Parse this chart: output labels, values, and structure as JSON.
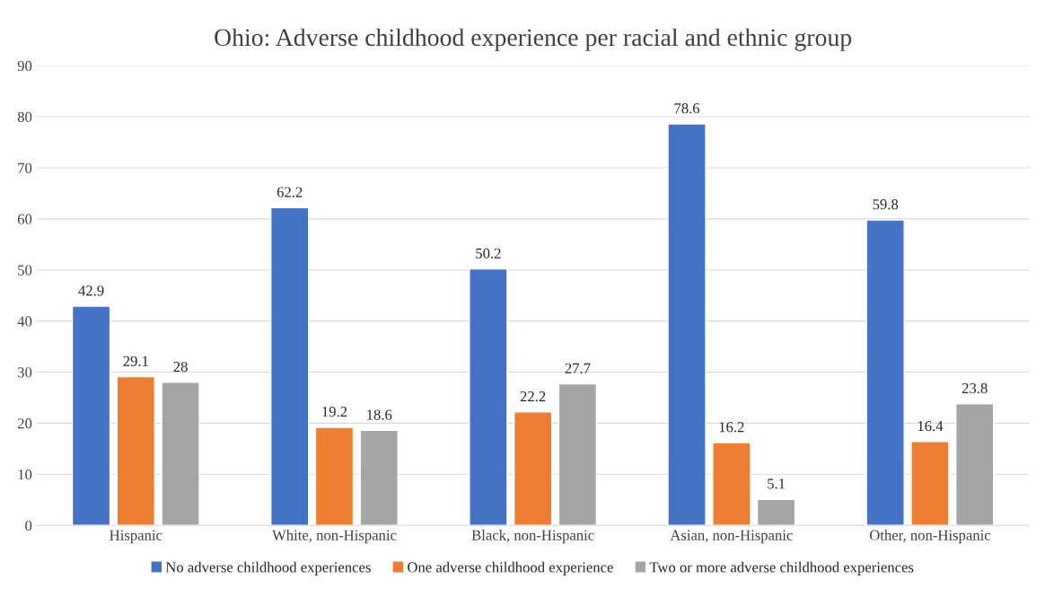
{
  "chart_data": {
    "type": "bar",
    "title": "Ohio: Adverse childhood experience per racial and ethnic group",
    "categories": [
      "Hispanic",
      "White, non-Hispanic",
      "Black, non-Hispanic",
      "Asian, non-Hispanic",
      "Other, non-Hispanic"
    ],
    "series": [
      {
        "name": "No adverse childhood experiences",
        "color": "#4472c4",
        "values": [
          42.9,
          62.2,
          50.2,
          78.6,
          59.8
        ]
      },
      {
        "name": "One adverse childhood experience",
        "color": "#ed7d31",
        "values": [
          29.1,
          19.2,
          22.2,
          16.2,
          16.4
        ]
      },
      {
        "name": "Two or more adverse childhood experiences",
        "color": "#a5a5a5",
        "values": [
          28,
          18.6,
          27.7,
          5.1,
          23.8
        ]
      }
    ],
    "ylim": [
      0,
      90
    ],
    "yticks": [
      0,
      10,
      20,
      30,
      40,
      50,
      60,
      70,
      80,
      90
    ],
    "grid": "y",
    "legend": "bottom",
    "data_labels": true
  }
}
